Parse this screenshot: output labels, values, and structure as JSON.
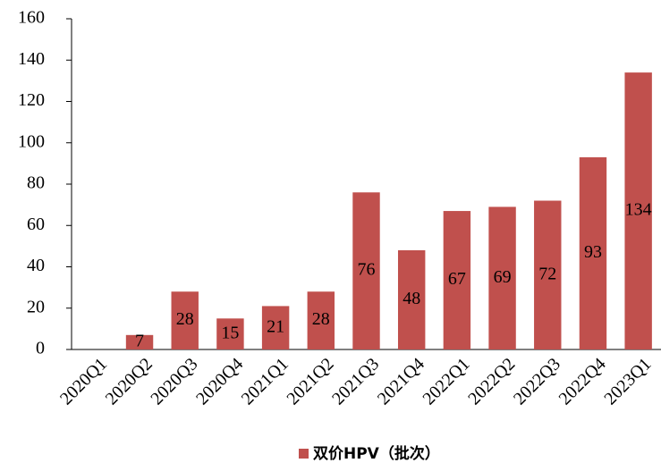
{
  "chart_data": {
    "type": "bar",
    "categories": [
      "2020Q1",
      "2020Q2",
      "2020Q3",
      "2020Q4",
      "2021Q1",
      "2021Q2",
      "2021Q3",
      "2021Q4",
      "2022Q1",
      "2022Q2",
      "2022Q3",
      "2022Q4",
      "2023Q1"
    ],
    "series": [
      {
        "name": "双价HPV（批次）",
        "color": "#c0504d",
        "values": [
          null,
          7,
          28,
          15,
          21,
          28,
          76,
          48,
          67,
          69,
          72,
          93,
          134
        ]
      }
    ],
    "ylim": [
      0,
      160
    ],
    "yticks": [
      0,
      20,
      40,
      60,
      80,
      100,
      120,
      140,
      160
    ],
    "grid": false,
    "legend": "bottom"
  }
}
